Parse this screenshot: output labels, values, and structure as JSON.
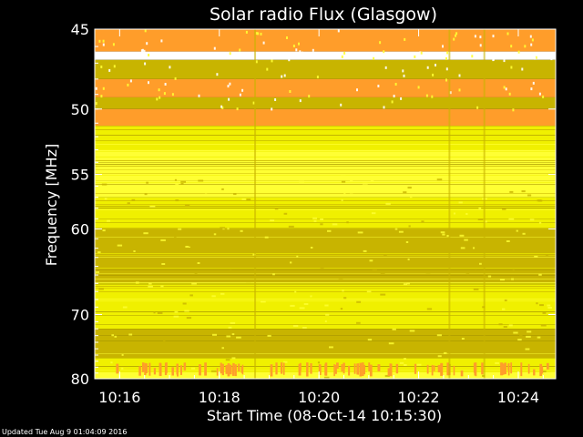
{
  "chart_data": {
    "type": "heatmap",
    "title": "Solar radio Flux (Glasgow)",
    "xlabel": "Start Time (08-Oct-14 10:15:30)",
    "ylabel": "Frequency [MHz]",
    "footer": "Updated Tue Aug  9 01:04:09 2016",
    "x_ticks": [
      "10:16",
      "10:18",
      "10:20",
      "10:22",
      "10:24"
    ],
    "x_tick_minutes": [
      16,
      18,
      20,
      22,
      24
    ],
    "xlim_minutes": [
      15.5,
      24.75
    ],
    "y_ticks": [
      45,
      50,
      55,
      60,
      70,
      80
    ],
    "ylim": [
      45,
      80
    ],
    "y_scale": "inverse",
    "scan_boundaries_minutes": [
      18.7,
      22.6,
      23.3
    ],
    "colors": {
      "background": "#000000",
      "text": "#ffffff",
      "bright_yellow": "#ffff33",
      "yellow": "#f0f000",
      "olive": "#c8b400",
      "dark_olive": "#a89600",
      "orange": "#ff9d2a",
      "white": "#ffffff"
    },
    "bands_mhz": [
      {
        "from": 45.0,
        "to": 46.3,
        "color": "orange"
      },
      {
        "from": 46.3,
        "to": 46.8,
        "color": "white"
      },
      {
        "from": 46.8,
        "to": 48.0,
        "color": "olive"
      },
      {
        "from": 48.0,
        "to": 49.2,
        "color": "orange"
      },
      {
        "from": 49.2,
        "to": 50.0,
        "color": "olive"
      },
      {
        "from": 50.0,
        "to": 51.2,
        "color": "orange"
      },
      {
        "from": 51.2,
        "to": 53.0,
        "color": "yellow"
      },
      {
        "from": 53.0,
        "to": 57.0,
        "color": "bright_yellow"
      },
      {
        "from": 57.0,
        "to": 60.0,
        "color": "yellow"
      },
      {
        "from": 60.0,
        "to": 66.0,
        "color": "olive"
      },
      {
        "from": 66.0,
        "to": 72.0,
        "color": "yellow"
      },
      {
        "from": 72.0,
        "to": 76.5,
        "color": "olive"
      },
      {
        "from": 76.5,
        "to": 78.8,
        "color": "yellow"
      },
      {
        "from": 78.8,
        "to": 80.0,
        "color": "bright_yellow"
      }
    ],
    "orange_burst_band_mhz": [
      77.2,
      79.6
    ]
  }
}
